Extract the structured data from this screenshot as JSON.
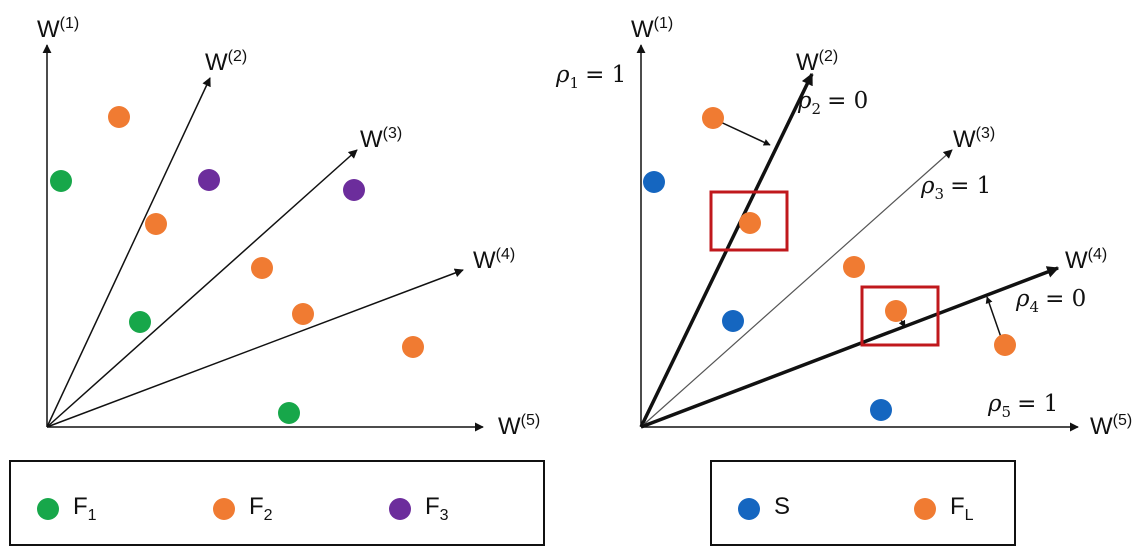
{
  "colors": {
    "green": "#17a74a",
    "orange": "#f07b32",
    "purple": "#6c2d9c",
    "blue": "#1566c0",
    "highlight": "#c0181c",
    "axis": "#111111"
  },
  "left_panel": {
    "axes": [
      {
        "name": "W",
        "sup": "(1)"
      },
      {
        "name": "W",
        "sup": "(2)"
      },
      {
        "name": "W",
        "sup": "(3)"
      },
      {
        "name": "W",
        "sup": "(4)"
      },
      {
        "name": "W",
        "sup": "(5)"
      }
    ],
    "legend": [
      {
        "label": "F",
        "sub": "1",
        "color": "green"
      },
      {
        "label": "F",
        "sub": "2",
        "color": "orange"
      },
      {
        "label": "F",
        "sub": "3",
        "color": "purple"
      }
    ]
  },
  "right_panel": {
    "axes": [
      {
        "name": "W",
        "sup": "(1)"
      },
      {
        "name": "W",
        "sup": "(2)"
      },
      {
        "name": "W",
        "sup": "(3)"
      },
      {
        "name": "W",
        "sup": "(4)"
      },
      {
        "name": "W",
        "sup": "(5)"
      }
    ],
    "rho_labels": [
      {
        "symbol": "ρ",
        "sub": "1",
        "value": "= 1"
      },
      {
        "symbol": "ρ",
        "sub": "2",
        "value": "= 0"
      },
      {
        "symbol": "ρ",
        "sub": "3",
        "value": "= 1"
      },
      {
        "symbol": "ρ",
        "sub": "4",
        "value": "= 0"
      },
      {
        "symbol": "ρ",
        "sub": "5",
        "value": "= 1"
      }
    ],
    "legend": [
      {
        "label": "S",
        "sub": "",
        "color": "blue"
      },
      {
        "label": "F",
        "sub": "L",
        "color": "orange"
      }
    ]
  }
}
